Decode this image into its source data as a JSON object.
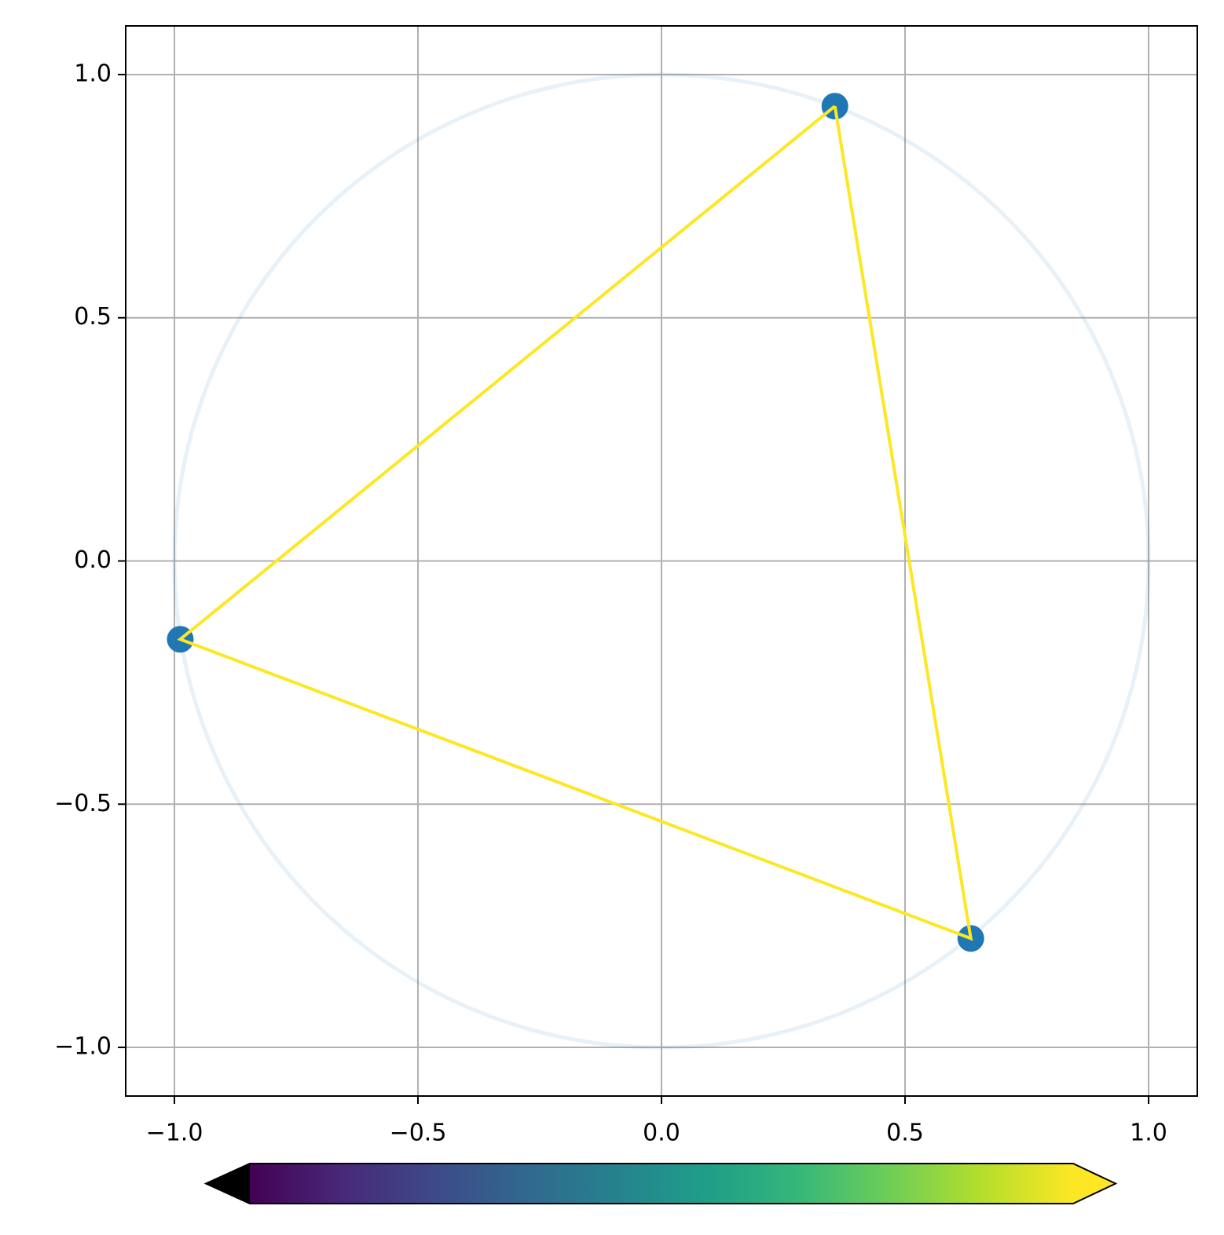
{
  "chart_data": {
    "type": "scatter",
    "xlim": [
      -1.1,
      1.1
    ],
    "ylim": [
      -1.1,
      1.1
    ],
    "xticks": [
      {
        "value": -1,
        "label": "−1.0"
      },
      {
        "value": -0.5,
        "label": "−0.5"
      },
      {
        "value": 0,
        "label": "0.0"
      },
      {
        "value": 0.5,
        "label": "0.5"
      },
      {
        "value": 1,
        "label": "1.0"
      }
    ],
    "yticks": [
      {
        "value": -1,
        "label": "−1.0"
      },
      {
        "value": -0.5,
        "label": "−0.5"
      },
      {
        "value": 0,
        "label": "0.0"
      },
      {
        "value": 0.5,
        "label": "0.5"
      },
      {
        "value": 1,
        "label": "1.0"
      }
    ],
    "grid": true,
    "reference_circle": {
      "radius": 1,
      "color": "#1f77b4",
      "alpha": 0.1
    },
    "series": [
      {
        "type": "scatter",
        "color": "#1f77b4",
        "x": [
          0.356,
          -0.988,
          0.635
        ],
        "y": [
          0.935,
          -0.161,
          -0.776
        ]
      },
      {
        "type": "line",
        "color": "#fde725",
        "x": [
          0.356,
          -0.988,
          0.635,
          0.356
        ],
        "y": [
          0.935,
          -0.161,
          -0.776,
          0.935
        ]
      }
    ],
    "colorbar": {
      "cmap": "viridis",
      "orientation": "horizontal",
      "extend": "both",
      "under_color": "#000000",
      "over_color": "#fde725"
    }
  }
}
